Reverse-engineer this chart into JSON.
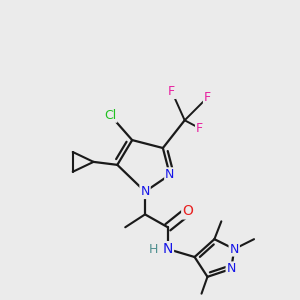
{
  "background_color": "#ebebeb",
  "colors": {
    "C": "#1a1a1a",
    "N": "#1515e8",
    "O": "#e82020",
    "Cl": "#20c020",
    "F": "#e820a0",
    "H": "#509090",
    "bond": "#1a1a1a"
  },
  "figsize": [
    3.0,
    3.0
  ],
  "dpi": 100
}
